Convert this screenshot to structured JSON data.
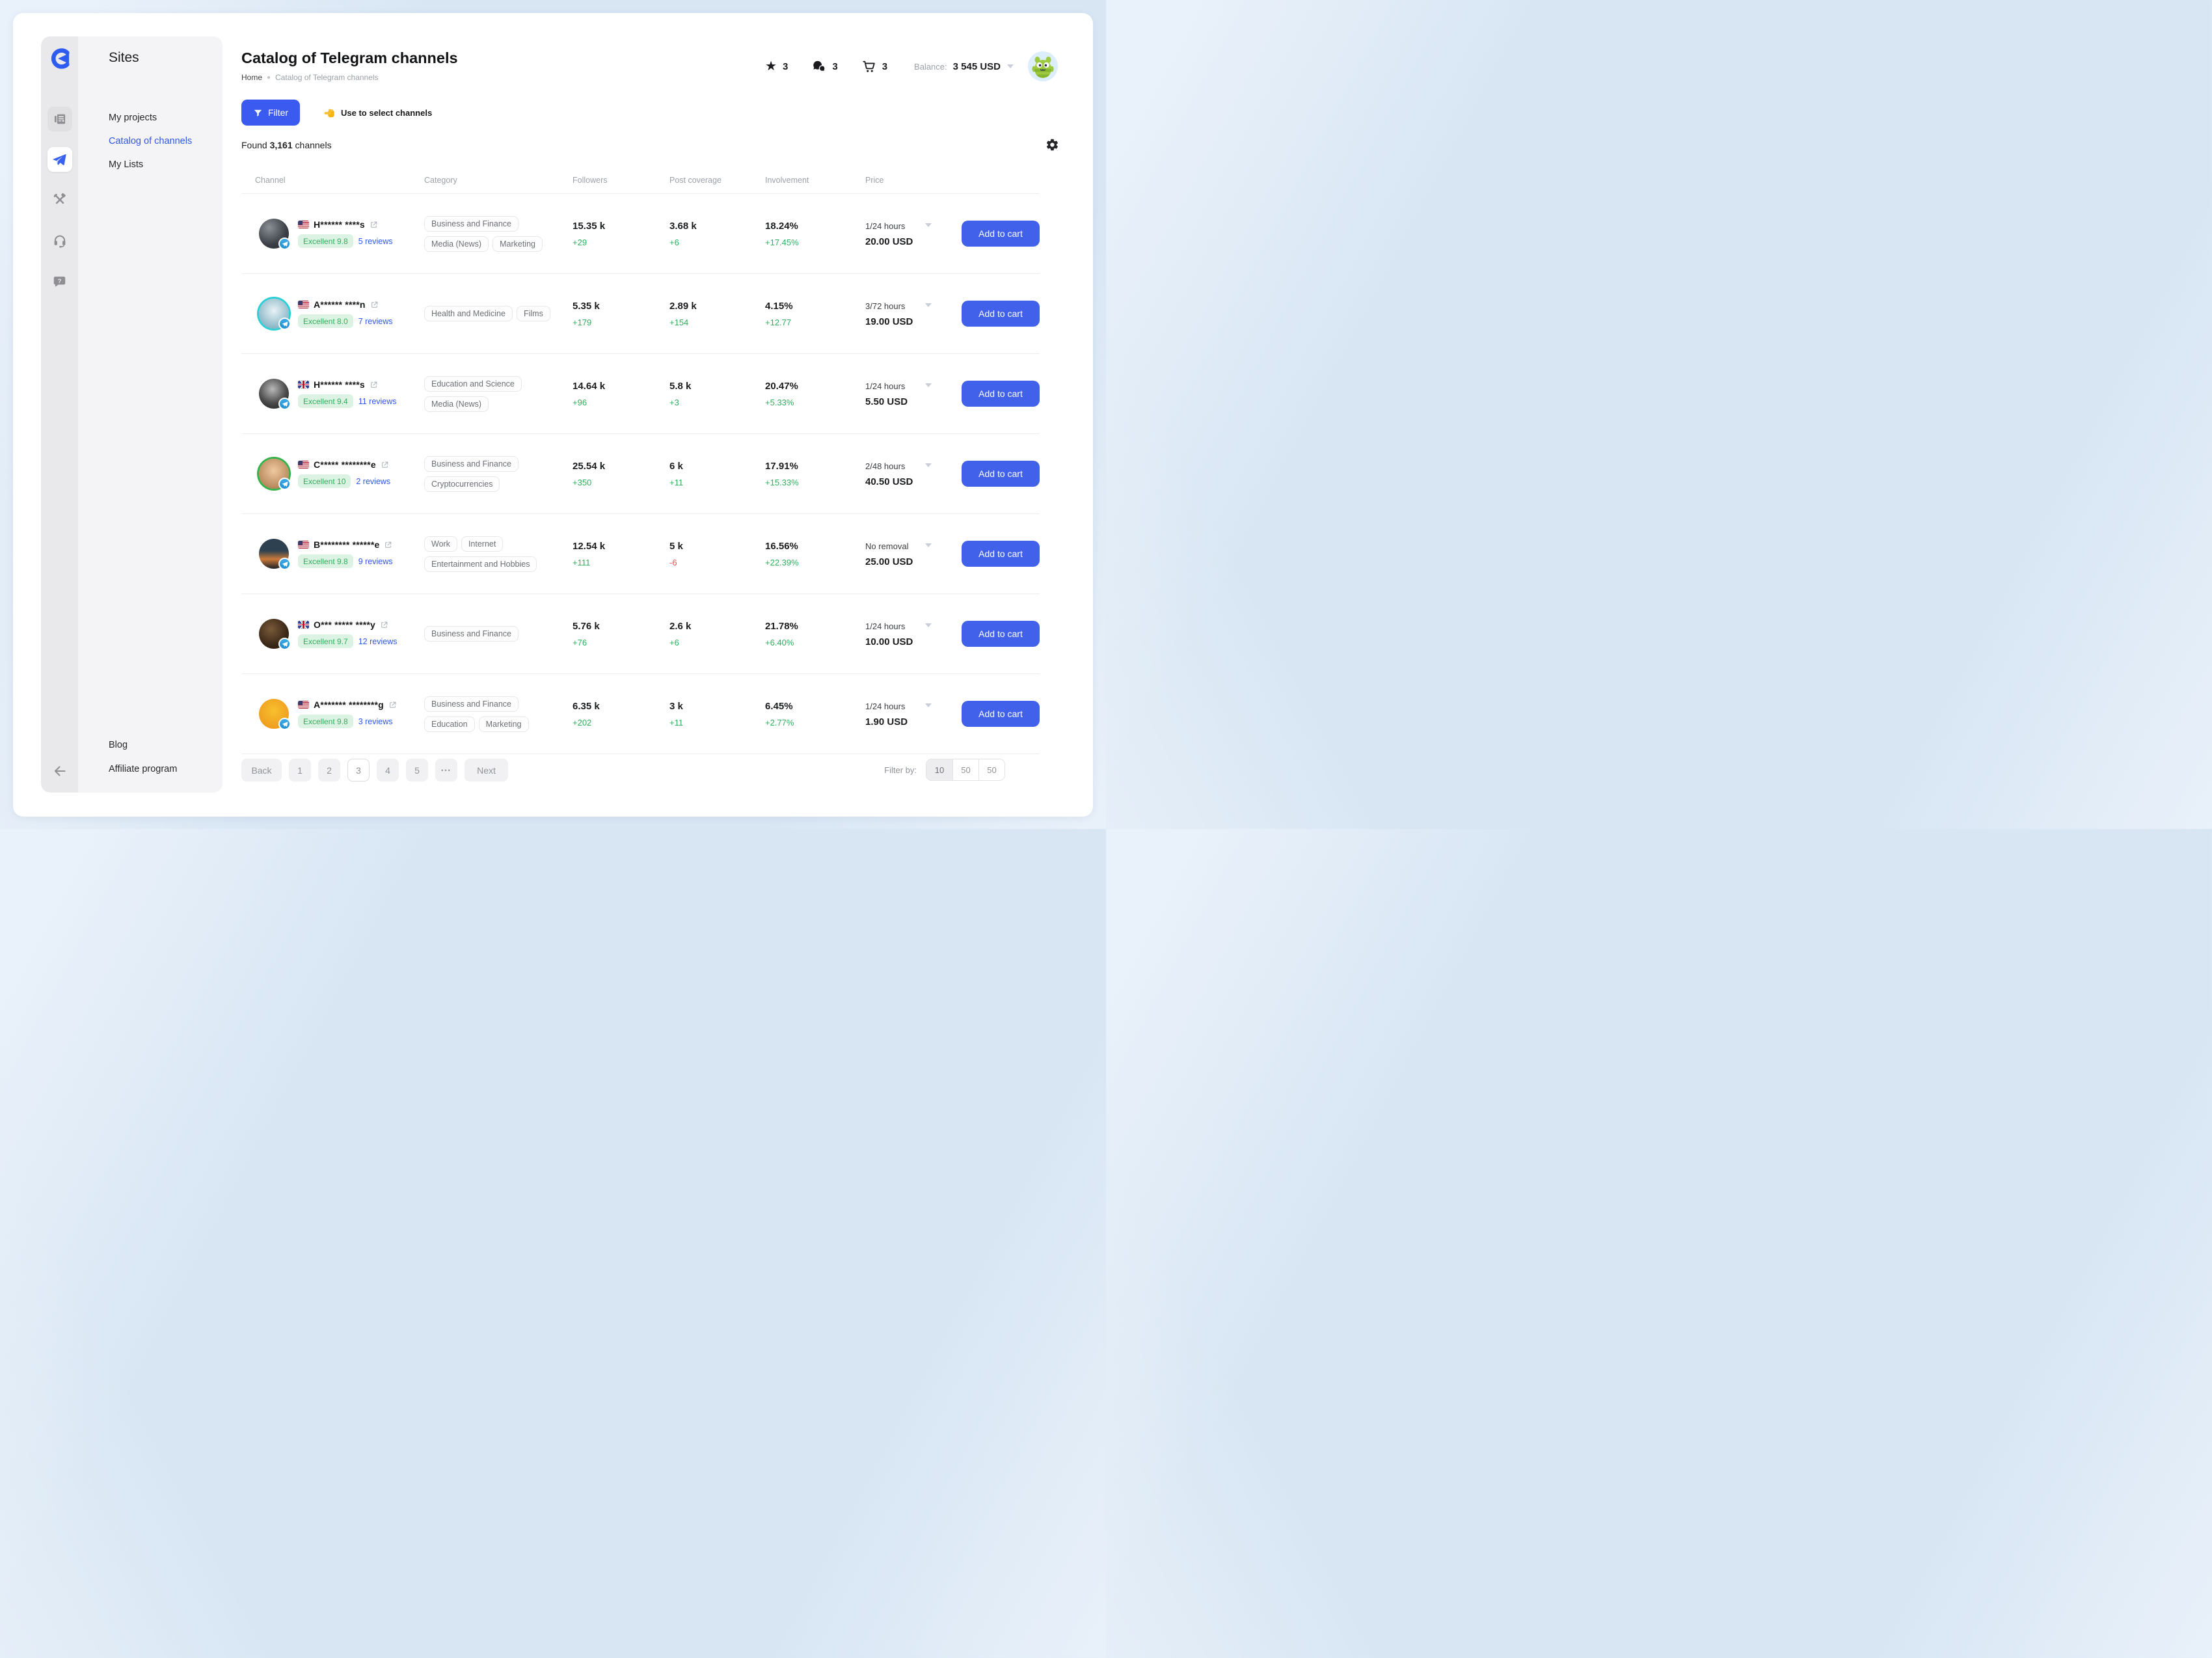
{
  "sidebar": {
    "title": "Sites",
    "items": [
      {
        "label": "My projects"
      },
      {
        "label": "Catalog of channels"
      },
      {
        "label": "My Lists"
      }
    ],
    "bottom_items": [
      {
        "label": "Blog"
      },
      {
        "label": "Affiliate program"
      }
    ],
    "icons": [
      "newspaper",
      "telegram-plane",
      "tools",
      "headset",
      "help",
      "arrow-left"
    ]
  },
  "header": {
    "title": "Catalog of Telegram channels",
    "breadcrumb_home": "Home",
    "breadcrumb_current": "Catalog of Telegram channels",
    "favorites_count": "3",
    "messages_count": "3",
    "cart_count": "3",
    "balance_label": "Balance:",
    "balance_value": "3 545 USD"
  },
  "toolbar": {
    "filter_label": "Filter",
    "hint_text": "Use to select channels",
    "found_prefix": "Found",
    "found_count": "3,161",
    "found_suffix": "channels"
  },
  "table": {
    "col_channel": "Channel",
    "col_category": "Category",
    "col_followers": "Followers",
    "col_coverage": "Post coverage",
    "col_involvement": "Involvement",
    "col_price": "Price",
    "add_to_cart_label": "Add to cart",
    "rows": [
      {
        "name": "H****** ****s",
        "flag": "us",
        "rating": "Excellent 9.8",
        "reviews": "5 reviews",
        "categories": [
          [
            "Business and Finance"
          ],
          [
            "Media (News)",
            "Marketing"
          ]
        ],
        "followers": {
          "value": "15.35 k",
          "delta": "+29"
        },
        "coverage": {
          "value": "3.68 k",
          "delta": "+6"
        },
        "involvement": {
          "value": "18.24%",
          "delta": "+17.45%"
        },
        "price_terms": "1/24 hours",
        "price_amount": "20.00 USD",
        "avatar_bg": "radial-gradient(circle at 35% 30%, #8b8f96, #3a3f46 60%, #23262b)",
        "avatar_ring": ""
      },
      {
        "name": "A****** ****n",
        "flag": "us",
        "rating": "Excellent 8.0",
        "reviews": "7 reviews",
        "categories": [
          [
            "Health and Medicine",
            "Films"
          ]
        ],
        "followers": {
          "value": "5.35 k",
          "delta": "+179"
        },
        "coverage": {
          "value": "2.89 k",
          "delta": "+154"
        },
        "involvement": {
          "value": "4.15%",
          "delta": "+12.77"
        },
        "price_terms": "3/72 hours",
        "price_amount": "19.00 USD",
        "avatar_bg": "radial-gradient(circle at 50% 40%, #e8f2f5, #8fb9c9 70%, #6899ab)",
        "avatar_ring": "#2ccfd6"
      },
      {
        "name": "H****** ****s",
        "flag": "uk",
        "rating": "Excellent 9.4",
        "reviews": "11 reviews",
        "categories": [
          [
            "Education and Science"
          ],
          [
            "Media (News)"
          ]
        ],
        "followers": {
          "value": "14.64 k",
          "delta": "+96"
        },
        "coverage": {
          "value": "5.8 k",
          "delta": "+3"
        },
        "involvement": {
          "value": "20.47%",
          "delta": "+5.33%"
        },
        "price_terms": "1/24 hours",
        "price_amount": "5.50 USD",
        "avatar_bg": "radial-gradient(circle at 45% 35%, #b9b9b9, #4a4a4a 55%, #171717)",
        "avatar_ring": ""
      },
      {
        "name": "C***** ********e",
        "flag": "us",
        "rating": "Excellent 10",
        "reviews": "2 reviews",
        "categories": [
          [
            "Business and Finance"
          ],
          [
            "Cryptocurrencies"
          ]
        ],
        "followers": {
          "value": "25.54 k",
          "delta": "+350"
        },
        "coverage": {
          "value": "6 k",
          "delta": "+11"
        },
        "involvement": {
          "value": "17.91%",
          "delta": "+15.33%"
        },
        "price_terms": "2/48 hours",
        "price_amount": "40.50 USD",
        "avatar_bg": "radial-gradient(circle at 50% 40%, #f0c9a0, #b98a5e 70%, #7d5a3a)",
        "avatar_ring": "#35b34a"
      },
      {
        "name": "B******** ******e",
        "flag": "us",
        "rating": "Excellent 9.8",
        "reviews": "9 reviews",
        "categories": [
          [
            "Work",
            "Internet"
          ],
          [
            "Entertainment and Hobbies"
          ]
        ],
        "followers": {
          "value": "12.54 k",
          "delta": "+111"
        },
        "coverage": {
          "value": "5 k",
          "delta": "-6"
        },
        "involvement": {
          "value": "16.56%",
          "delta": "+22.39%"
        },
        "price_terms": "No removal",
        "price_amount": "25.00 USD",
        "avatar_bg": "linear-gradient(180deg, #2e4150 40%, #c97a3a 68%, #1d1f24)",
        "avatar_ring": ""
      },
      {
        "name": "O*** ***** ****y",
        "flag": "uk",
        "rating": "Excellent 9.7",
        "reviews": "12 reviews",
        "categories": [
          [
            "Business and Finance"
          ]
        ],
        "followers": {
          "value": "5.76 k",
          "delta": "+76"
        },
        "coverage": {
          "value": "2.6 k",
          "delta": "+6"
        },
        "involvement": {
          "value": "21.78%",
          "delta": "+6.40%"
        },
        "price_terms": "1/24 hours",
        "price_amount": "10.00 USD",
        "avatar_bg": "radial-gradient(circle at 40% 35%, #7a5a3a, #3a2817 60%, #1c120a)",
        "avatar_ring": ""
      },
      {
        "name": "A******* ********g",
        "flag": "us",
        "rating": "Excellent 9.8",
        "reviews": "3 reviews",
        "categories": [
          [
            "Business and Finance"
          ],
          [
            "Education",
            "Marketing"
          ]
        ],
        "followers": {
          "value": "6.35 k",
          "delta": "+202"
        },
        "coverage": {
          "value": "3 k",
          "delta": "+11"
        },
        "involvement": {
          "value": "6.45%",
          "delta": "+2.77%"
        },
        "price_terms": "1/24 hours",
        "price_amount": "1.90 USD",
        "avatar_bg": "radial-gradient(circle at 50% 40%, #f8c02e, #ef9d1f 75%, #d98a14)",
        "avatar_ring": ""
      }
    ]
  },
  "pagination": {
    "back_label": "Back",
    "pages": [
      "1",
      "2",
      "3",
      "4",
      "5"
    ],
    "active_page": "3",
    "ellipsis": "•••",
    "next_label": "Next",
    "filter_by_label": "Filter by:",
    "page_sizes": [
      "10",
      "50",
      "50"
    ]
  },
  "colors": {
    "accent_blue": "#4261ea",
    "link_blue": "#2f57e8",
    "positive_green": "#2fae5c",
    "negative_red": "#e2574c",
    "rating_bg": "#dcf3e4",
    "page_bg": "#d8e6f4"
  }
}
